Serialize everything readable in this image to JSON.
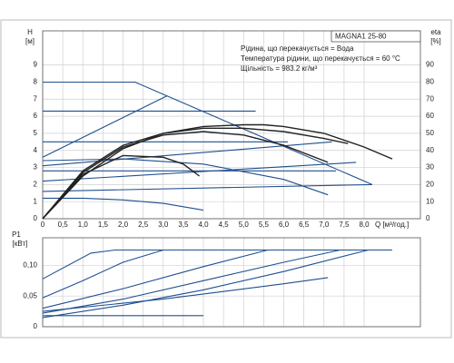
{
  "chart_data": [
    {
      "type": "line",
      "title": "MAGNA1 25-80",
      "annotations": [
        "Рідина, що перекачується = Вода",
        "Температура рідини, що перекачується = 60 °C",
        "Щільність = 983.2 кг/м³"
      ],
      "y_label": "H",
      "y_unit": "[м]",
      "y2_label": "eta",
      "y2_unit": "[%]",
      "x_label": "Q [м³/год.]",
      "xlim": [
        0,
        9.4
      ],
      "ylim": [
        0,
        11
      ],
      "y2lim": [
        0,
        110
      ],
      "grid": true,
      "xticks": [
        0,
        {
          "value": 0.5,
          "label": "0,5"
        },
        {
          "value": 1,
          "label": "1,0"
        },
        {
          "value": 1.5,
          "label": "1,5"
        },
        {
          "value": 2,
          "label": "2,0"
        },
        {
          "value": 2.5,
          "label": "2,5"
        },
        {
          "value": 3,
          "label": "3,0"
        },
        {
          "value": 3.5,
          "label": "3,5"
        },
        {
          "value": 4,
          "label": "4,0"
        },
        {
          "value": 4.5,
          "label": "4,5"
        },
        {
          "value": 5,
          "label": "5,0"
        },
        {
          "value": 5.5,
          "label": "5,5"
        },
        {
          "value": 6,
          "label": "6,0"
        },
        {
          "value": 6.5,
          "label": "6,5"
        },
        {
          "value": 7,
          "label": "7,0"
        },
        {
          "value": 7.5,
          "label": "7,5"
        },
        {
          "value": 8,
          "label": "8,0"
        }
      ],
      "yticks": [
        0,
        1,
        2,
        3,
        4,
        5,
        6,
        7,
        8,
        9
      ],
      "y2ticks": [
        0,
        10,
        20,
        30,
        40,
        50,
        60,
        70,
        80,
        90
      ],
      "series": [
        {
          "color": "#1f4f8f",
          "x": [
            0,
            2.3,
            8.2
          ],
          "values": [
            8,
            8,
            2
          ]
        },
        {
          "color": "#1f4f8f",
          "x": [
            0,
            5.3
          ],
          "values": [
            6.3,
            6.3
          ]
        },
        {
          "color": "#1f4f8f",
          "x": [
            0,
            6.1
          ],
          "values": [
            4.5,
            4.5
          ]
        },
        {
          "color": "#1f4f8f",
          "x": [
            0,
            3.1
          ],
          "values": [
            3.6,
            7.2
          ]
        },
        {
          "color": "#1f4f8f",
          "x": [
            0,
            7.2
          ],
          "values": [
            3.1,
            4.5
          ]
        },
        {
          "color": "#1f4f8f",
          "x": [
            0,
            7.3
          ],
          "values": [
            2.8,
            2.8
          ]
        },
        {
          "color": "#1f4f8f",
          "x": [
            0,
            7.8
          ],
          "values": [
            2.2,
            3.3
          ]
        },
        {
          "color": "#1f4f8f",
          "x": [
            0,
            8.2
          ],
          "values": [
            1.6,
            2.0
          ]
        },
        {
          "color": "#1f4f8f",
          "x": [
            0,
            1,
            2,
            3,
            4
          ],
          "values": [
            1.2,
            1.2,
            1.1,
            0.9,
            0.5
          ]
        },
        {
          "color": "#1f4f8f",
          "x": [
            0,
            2,
            4,
            6,
            7.1
          ],
          "values": [
            3.4,
            3.5,
            3.2,
            2.3,
            1.4
          ]
        },
        {
          "color": "#222222",
          "axis": "y2",
          "x": [
            0,
            1,
            2,
            3,
            4,
            5,
            5.5,
            6,
            7,
            8,
            8.7
          ],
          "values": [
            0,
            25,
            41,
            50,
            54,
            55,
            55,
            54,
            50,
            42,
            35
          ]
        },
        {
          "color": "#222222",
          "axis": "y2",
          "x": [
            0,
            1,
            2,
            3,
            3.5,
            3.9
          ],
          "values": [
            0,
            26,
            37,
            36,
            32,
            25
          ]
        },
        {
          "color": "#222222",
          "axis": "y2",
          "x": [
            0,
            1,
            2,
            3,
            4,
            5,
            6,
            7.1
          ],
          "values": [
            0,
            27,
            42,
            49,
            51,
            49,
            43,
            33
          ]
        },
        {
          "color": "#222222",
          "axis": "y2",
          "x": [
            0,
            1,
            2,
            3,
            4,
            5,
            6,
            7,
            7.6
          ],
          "values": [
            0,
            28,
            43,
            50,
            53,
            53,
            51,
            47,
            44
          ]
        }
      ]
    },
    {
      "type": "line",
      "y_label": "P1",
      "y_unit": "[кВт]",
      "xlim": [
        0,
        9.4
      ],
      "ylim": [
        0,
        0.145
      ],
      "grid": true,
      "yticks": [
        0,
        {
          "value": 0.05,
          "label": "0,05"
        },
        {
          "value": 0.1,
          "label": "0,10"
        }
      ],
      "series": [
        {
          "color": "#1f4f8f",
          "x": [
            0,
            1.2,
            1.8,
            8.7
          ],
          "values": [
            0.078,
            0.12,
            0.125,
            0.125
          ]
        },
        {
          "color": "#1f4f8f",
          "x": [
            0,
            1,
            2,
            3,
            8.7
          ],
          "values": [
            0.047,
            0.075,
            0.105,
            0.125,
            0.125
          ]
        },
        {
          "color": "#1f4f8f",
          "x": [
            0,
            2,
            4,
            5.6,
            8.7
          ],
          "values": [
            0.03,
            0.062,
            0.098,
            0.125,
            0.125
          ]
        },
        {
          "color": "#1f4f8f",
          "x": [
            0,
            2,
            4,
            6,
            7.4,
            8.7
          ],
          "values": [
            0.022,
            0.045,
            0.075,
            0.105,
            0.125,
            0.125
          ]
        },
        {
          "color": "#1f4f8f",
          "x": [
            0,
            3,
            6,
            7.1
          ],
          "values": [
            0.025,
            0.045,
            0.07,
            0.08
          ]
        },
        {
          "color": "#1f4f8f",
          "x": [
            0,
            4
          ],
          "values": [
            0.018,
            0.018
          ]
        },
        {
          "color": "#1f4f8f",
          "x": [
            0,
            2,
            4,
            6,
            8.1,
            8.7
          ],
          "values": [
            0.015,
            0.035,
            0.06,
            0.09,
            0.125,
            0.125
          ]
        }
      ]
    }
  ]
}
